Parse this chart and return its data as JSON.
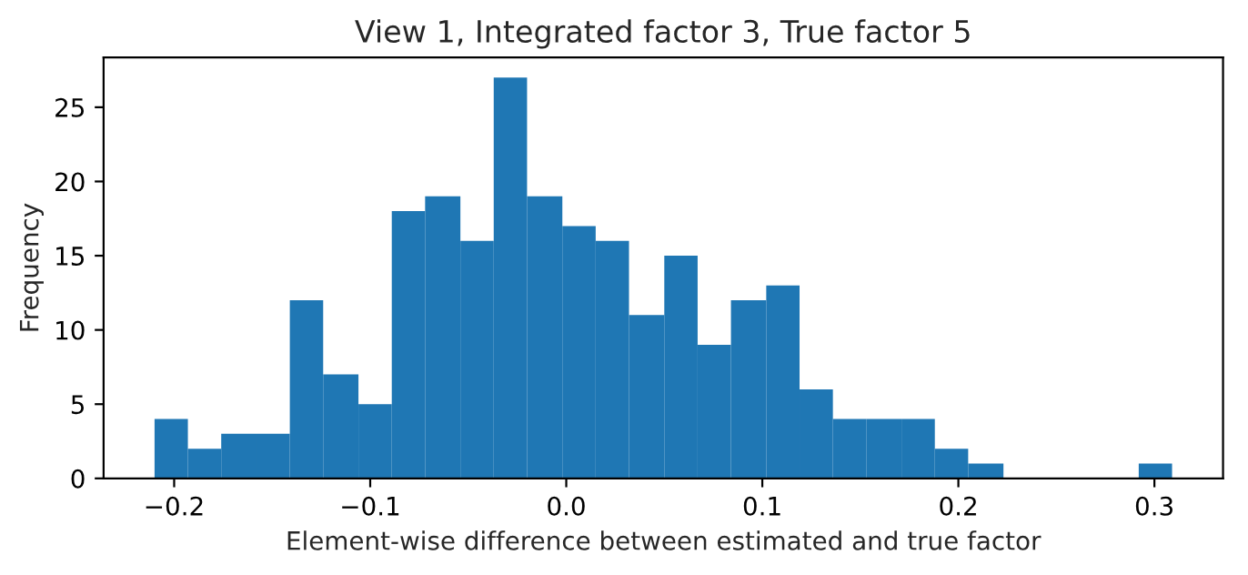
{
  "chart_data": {
    "type": "histogram",
    "title": "View 1, Integrated factor 3, True factor 5",
    "xlabel": "Element-wise difference between estimated and true factor",
    "ylabel": "Frequency",
    "color": "#1f77b4",
    "bins": [
      -0.21,
      -0.193,
      -0.176,
      -0.158,
      -0.141,
      -0.124,
      -0.106,
      -0.089,
      -0.072,
      -0.054,
      -0.037,
      -0.02,
      -0.002,
      0.015,
      0.032,
      0.05,
      0.067,
      0.084,
      0.102,
      0.119,
      0.136,
      0.153,
      0.171,
      0.188,
      0.205,
      0.223,
      0.292,
      0.309
    ],
    "values": [
      4,
      2,
      3,
      3,
      12,
      7,
      5,
      18,
      19,
      16,
      27,
      19,
      17,
      16,
      11,
      15,
      9,
      12,
      13,
      6,
      4,
      4,
      4,
      2,
      1,
      0,
      1
    ],
    "xlim": [
      -0.236,
      0.335
    ],
    "xticks": [
      {
        "value": -0.2,
        "label": "−0.2"
      },
      {
        "value": -0.1,
        "label": "−0.1"
      },
      {
        "value": 0,
        "label": "0.0"
      },
      {
        "value": 0.1,
        "label": "0.1"
      },
      {
        "value": 0.2,
        "label": "0.2"
      },
      {
        "value": 0.3,
        "label": "0.3"
      }
    ],
    "ylim": [
      0,
      28.35
    ],
    "yticks": [
      0,
      5,
      10,
      15,
      20,
      25
    ],
    "grid": false
  }
}
